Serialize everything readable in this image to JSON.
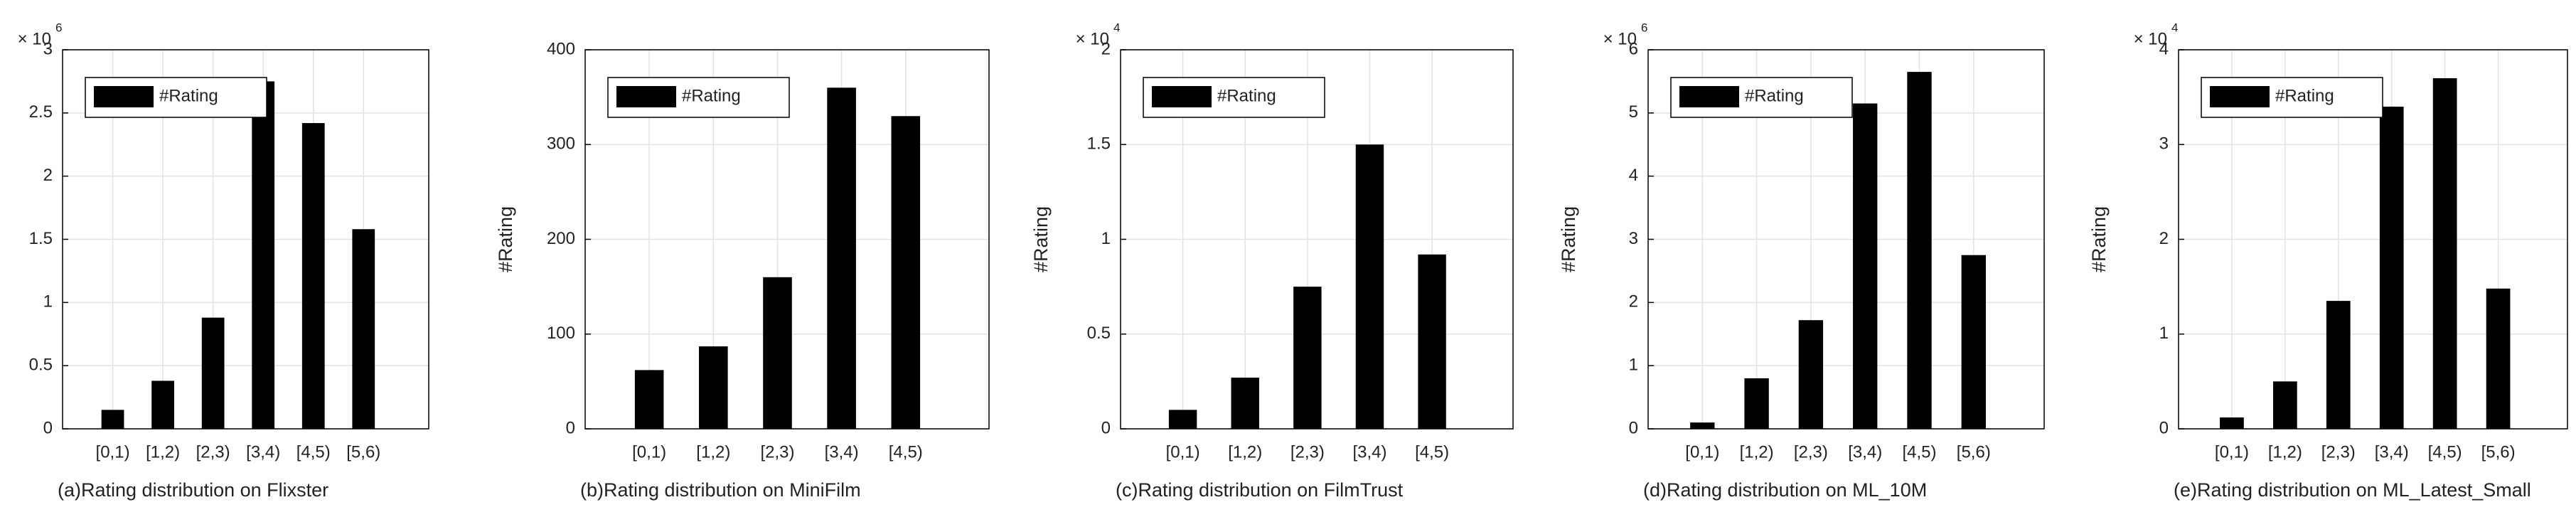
{
  "chart_data": [
    {
      "type": "bar",
      "title": "(a)Rating distribution on Flixster",
      "y_scale_label": "× 10",
      "y_scale_exponent": "6",
      "categories": [
        "[0,1)",
        "[1,2)",
        "[2,3)",
        "[3,4)",
        "[4,5)",
        "[5,6)"
      ],
      "series": [
        {
          "name": "#Rating",
          "color": "#000000",
          "values": [
            0.15,
            0.38,
            0.88,
            2.75,
            2.42,
            1.58
          ]
        }
      ],
      "ylim": [
        0,
        3
      ],
      "yticks": [
        0,
        0.5,
        1,
        1.5,
        2,
        2.5,
        3
      ],
      "grid": true,
      "legend": "upper-left"
    },
    {
      "type": "bar",
      "title": "(b)Rating distribution on MiniFilm",
      "ylabel": "#Rating",
      "categories": [
        "[0,1)",
        "[1,2)",
        "[2,3)",
        "[3,4)",
        "[4,5)"
      ],
      "series": [
        {
          "name": "#Rating",
          "color": "#000000",
          "values": [
            62,
            87,
            160,
            360,
            330
          ]
        }
      ],
      "ylim": [
        0,
        400
      ],
      "yticks": [
        0,
        100,
        200,
        300,
        400
      ],
      "grid": true,
      "legend": "upper-left"
    },
    {
      "type": "bar",
      "title": "(c)Rating distribution on FilmTrust",
      "ylabel": "#Rating",
      "y_scale_label": "× 10",
      "y_scale_exponent": "4",
      "categories": [
        "[0,1)",
        "[1,2)",
        "[2,3)",
        "[3,4)",
        "[4,5)"
      ],
      "series": [
        {
          "name": "#Rating",
          "color": "#000000",
          "values": [
            0.1,
            0.27,
            0.75,
            1.5,
            0.92
          ]
        }
      ],
      "ylim": [
        0,
        2
      ],
      "yticks": [
        0,
        0.5,
        1,
        1.5,
        2
      ],
      "grid": true,
      "legend": "upper-left"
    },
    {
      "type": "bar",
      "title": "(d)Rating distribution on ML_10M",
      "ylabel": "#Rating",
      "y_scale_label": "× 10",
      "y_scale_exponent": "6",
      "categories": [
        "[0,1)",
        "[1,2)",
        "[2,3)",
        "[3,4)",
        "[4,5)",
        "[5,6)"
      ],
      "series": [
        {
          "name": "#Rating",
          "color": "#000000",
          "values": [
            0.1,
            0.8,
            1.72,
            5.15,
            5.65,
            2.75
          ]
        }
      ],
      "ylim": [
        0,
        6
      ],
      "yticks": [
        0,
        1,
        2,
        3,
        4,
        5,
        6
      ],
      "grid": true,
      "legend": "upper-left"
    },
    {
      "type": "bar",
      "title": "(e)Rating distribution on ML_Latest_Small",
      "ylabel": "#Rating",
      "y_scale_label": "× 10",
      "y_scale_exponent": "4",
      "categories": [
        "[0,1)",
        "[1,2)",
        "[2,3)",
        "[3,4)",
        "[4,5)",
        "[5,6)"
      ],
      "series": [
        {
          "name": "#Rating",
          "color": "#000000",
          "values": [
            0.12,
            0.5,
            1.35,
            3.4,
            3.7,
            1.48
          ]
        }
      ],
      "ylim": [
        0,
        4
      ],
      "yticks": [
        0,
        1,
        2,
        3,
        4
      ],
      "grid": true,
      "legend": "upper-left"
    }
  ]
}
